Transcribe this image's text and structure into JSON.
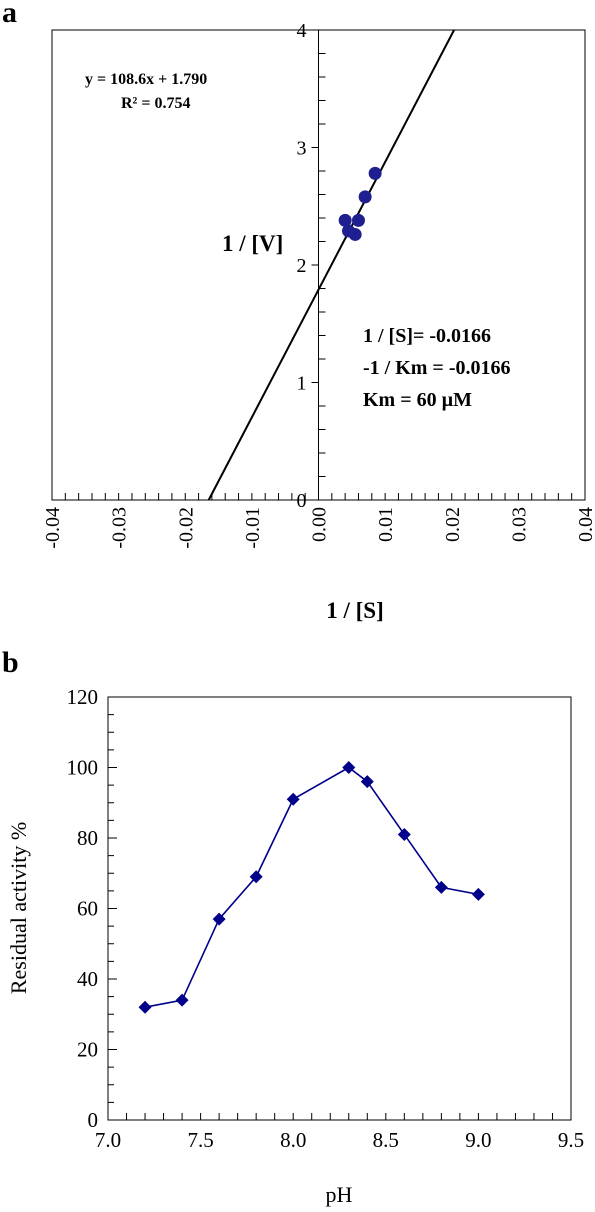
{
  "panel_a": {
    "letter": "a",
    "equation": "y = 108.6x + 1.790",
    "r2": "R² = 0.754",
    "annotations": [
      "1 / [S]= -0.0166",
      "-1 / Km = -0.0166",
      "Km = 60 µM"
    ]
  },
  "panel_b": {
    "letter": "b"
  },
  "chart_data": [
    {
      "type": "scatter",
      "xlabel": "1 / [S]",
      "ylabel": "1 / [V]",
      "xlim": [
        -0.04,
        0.04
      ],
      "ylim": [
        0,
        4
      ],
      "x_ticks": [
        "-0.04",
        "-0.03",
        "-0.02",
        "-0.01",
        "0.00",
        "0.01",
        "0.02",
        "0.03",
        "0.04"
      ],
      "y_ticks": [
        "0",
        "1",
        "2",
        "3",
        "4"
      ],
      "points": [
        {
          "x": 0.004,
          "y": 2.38
        },
        {
          "x": 0.0045,
          "y": 2.29
        },
        {
          "x": 0.0055,
          "y": 2.26
        },
        {
          "x": 0.006,
          "y": 2.38
        },
        {
          "x": 0.007,
          "y": 2.58
        },
        {
          "x": 0.0085,
          "y": 2.78
        }
      ],
      "trendline": {
        "slope": 108.6,
        "intercept": 1.79
      },
      "marker_color": "#1f1f8f",
      "line_color": "#000000"
    },
    {
      "type": "line",
      "xlabel": "pH",
      "ylabel": "Residual activity %",
      "xlim": [
        7.0,
        9.5
      ],
      "ylim": [
        0,
        120
      ],
      "x_ticks": [
        "7.0",
        "7.5",
        "8.0",
        "8.5",
        "9.0",
        "9.5"
      ],
      "y_ticks": [
        "0",
        "20",
        "40",
        "60",
        "80",
        "100",
        "120"
      ],
      "x": [
        7.2,
        7.4,
        7.6,
        7.8,
        8.0,
        8.3,
        8.4,
        8.6,
        8.8,
        9.0
      ],
      "y": [
        32,
        34,
        57,
        69,
        91,
        100,
        96,
        81,
        66,
        64
      ],
      "series_color": "#00008b"
    }
  ]
}
